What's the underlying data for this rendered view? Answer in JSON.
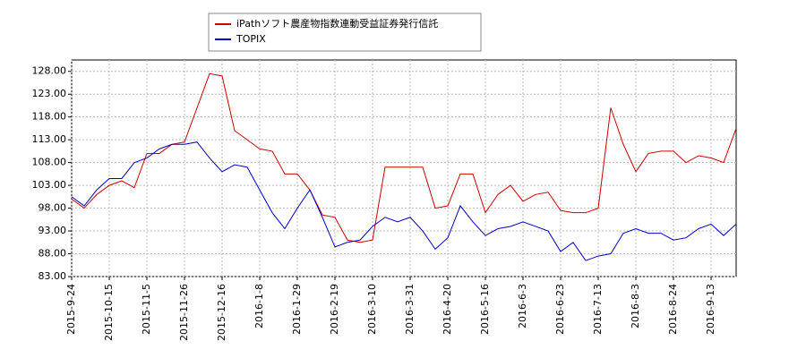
{
  "chart_data": {
    "type": "line",
    "categories": [
      "2015-9-24",
      null,
      null,
      "2015-10-15",
      null,
      null,
      "2015-11-5",
      null,
      null,
      "2015-11-26",
      null,
      null,
      "2015-12-16",
      null,
      null,
      "2016-1-8",
      null,
      null,
      "2016-1-29",
      null,
      null,
      "2016-2-19",
      null,
      null,
      "2016-3-10",
      null,
      null,
      "2016-3-31",
      null,
      null,
      "2016-4-20",
      null,
      null,
      "2016-5-16",
      null,
      null,
      "2016-6-3",
      null,
      null,
      "2016-6-23",
      null,
      null,
      "2016-7-13",
      null,
      null,
      "2016-8-3",
      null,
      null,
      "2016-8-24",
      null,
      null,
      "2016-9-13",
      null,
      null
    ],
    "series": [
      {
        "name": "iPathソフト農産物指数連動受益証券発行信託",
        "color": "#cc0000",
        "values": [
          100,
          98,
          101,
          103,
          104,
          102.5,
          110,
          110,
          112,
          112.5,
          120,
          127.5,
          127,
          115,
          113,
          111,
          110.5,
          105.5,
          105.5,
          102,
          96.5,
          96,
          91,
          90.5,
          91,
          107,
          107,
          107,
          107,
          98,
          98.5,
          105.5,
          105.5,
          97,
          101,
          103,
          99.5,
          101,
          101.5,
          97.5,
          97,
          97,
          98,
          120,
          112,
          106,
          110,
          110.5,
          110.5,
          108,
          109.5,
          109,
          108,
          115.5
        ]
      },
      {
        "name": "TOPIX",
        "color": "#0000cc",
        "values": [
          100.5,
          98.5,
          102,
          104.5,
          104.5,
          108,
          109,
          111,
          112,
          112,
          112.5,
          109,
          106,
          107.5,
          107,
          102,
          97,
          93.5,
          98,
          102,
          96,
          89.5,
          90.5,
          91,
          94,
          96,
          95,
          96,
          93,
          89,
          91.5,
          98.5,
          95,
          92,
          93.5,
          94,
          95,
          94,
          93,
          88.5,
          90.5,
          86.5,
          87.5,
          88,
          92.5,
          93.5,
          92.5,
          92.5,
          91,
          91.5,
          93.5,
          94.5,
          92,
          94.5
        ]
      }
    ],
    "ylim": [
      83,
      130.5
    ],
    "yticks": [
      {
        "value": 83,
        "label": "83.00"
      },
      {
        "value": 88,
        "label": "88.00"
      },
      {
        "value": 93,
        "label": "93.00"
      },
      {
        "value": 98,
        "label": "98.00"
      },
      {
        "value": 103,
        "label": "103.00"
      },
      {
        "value": 108,
        "label": "108.00"
      },
      {
        "value": 113,
        "label": "113.00"
      },
      {
        "value": 118,
        "label": "118.00"
      },
      {
        "value": 123,
        "label": "123.00"
      },
      {
        "value": 128,
        "label": "128.00"
      }
    ],
    "grid": true
  }
}
